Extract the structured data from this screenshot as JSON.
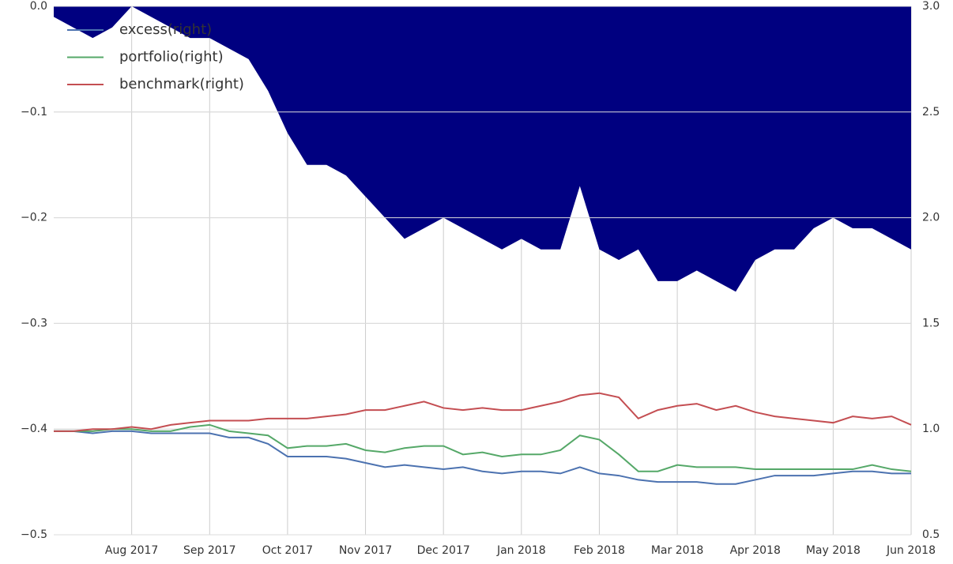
{
  "chart_data": {
    "type": "combo",
    "categories": [
      null,
      null,
      null,
      null,
      "Aug 2017",
      null,
      null,
      null,
      "Sep 2017",
      null,
      null,
      null,
      "Oct 2017",
      null,
      null,
      null,
      "Nov 2017",
      null,
      null,
      null,
      "Dec 2017",
      null,
      null,
      null,
      "Jan 2018",
      null,
      null,
      null,
      "Feb 2018",
      null,
      null,
      null,
      "Mar 2018",
      null,
      null,
      null,
      "Apr 2018",
      null,
      null,
      null,
      "May 2018",
      null,
      null,
      null,
      "Jun 2018"
    ],
    "series": [
      {
        "type": "area",
        "color": "#000080",
        "values": [
          -0.01,
          -0.02,
          -0.03,
          -0.02,
          0,
          -0.01,
          -0.02,
          -0.03,
          -0.03,
          -0.04,
          -0.05,
          -0.08,
          -0.12,
          -0.15,
          -0.15,
          -0.16,
          -0.18,
          -0.2,
          -0.22,
          -0.21,
          -0.2,
          -0.21,
          -0.22,
          -0.23,
          -0.22,
          -0.23,
          -0.23,
          -0.17,
          -0.23,
          -0.24,
          -0.23,
          -0.26,
          -0.26,
          -0.25,
          -0.26,
          -0.27,
          -0.24,
          -0.23,
          -0.23,
          -0.21,
          -0.2,
          -0.21,
          -0.21,
          -0.22,
          -0.23
        ]
      },
      {
        "type": "line",
        "name": "excess(right)",
        "color": "#4c72b0",
        "axis": "y2",
        "values": [
          0.99,
          0.99,
          0.98,
          0.99,
          0.99,
          0.98,
          0.98,
          0.98,
          0.98,
          0.96,
          0.96,
          0.93,
          0.87,
          0.87,
          0.87,
          0.86,
          0.84,
          0.82,
          0.83,
          0.82,
          0.81,
          0.82,
          0.8,
          0.79,
          0.8,
          0.8,
          0.79,
          0.82,
          0.79,
          0.78,
          0.76,
          0.75,
          0.75,
          0.75,
          0.74,
          0.74,
          0.76,
          0.78,
          0.78,
          0.78,
          0.79,
          0.8,
          0.8,
          0.79,
          0.79
        ]
      },
      {
        "type": "line",
        "name": "portfolio(right)",
        "color": "#55a868",
        "axis": "y2",
        "values": [
          0.99,
          0.99,
          0.99,
          1.0,
          1.0,
          0.99,
          0.99,
          1.01,
          1.02,
          0.99,
          0.98,
          0.97,
          0.91,
          0.92,
          0.92,
          0.93,
          0.9,
          0.89,
          0.91,
          0.92,
          0.92,
          0.88,
          0.89,
          0.87,
          0.88,
          0.88,
          0.9,
          0.97,
          0.95,
          0.88,
          0.8,
          0.8,
          0.83,
          0.82,
          0.82,
          0.82,
          0.81,
          0.81,
          0.81,
          0.81,
          0.81,
          0.81,
          0.83,
          0.81,
          0.8
        ]
      },
      {
        "type": "line",
        "name": "benchmark(right)",
        "color": "#c44e52",
        "axis": "y2",
        "values": [
          0.99,
          0.99,
          1.0,
          1.0,
          1.01,
          1.0,
          1.02,
          1.03,
          1.04,
          1.04,
          1.04,
          1.05,
          1.05,
          1.05,
          1.06,
          1.07,
          1.09,
          1.09,
          1.11,
          1.13,
          1.1,
          1.09,
          1.1,
          1.09,
          1.09,
          1.11,
          1.13,
          1.16,
          1.17,
          1.15,
          1.05,
          1.09,
          1.11,
          1.12,
          1.09,
          1.11,
          1.08,
          1.06,
          1.05,
          1.04,
          1.03,
          1.06,
          1.05,
          1.06,
          1.02
        ]
      }
    ],
    "ylim": [
      -0.5,
      0
    ],
    "yticks": [
      {
        "value": -0.5,
        "label": "−0.5"
      },
      {
        "value": -0.4,
        "label": "−0.4"
      },
      {
        "value": -0.3,
        "label": "−0.3"
      },
      {
        "value": -0.2,
        "label": "−0.2"
      },
      {
        "value": -0.1,
        "label": "−0.1"
      },
      {
        "value": 0,
        "label": "0.0"
      }
    ],
    "y2lim": [
      0.5,
      3.0
    ],
    "y2ticks": [
      0.5,
      {
        "value": 1,
        "label": "1.0"
      },
      1.5,
      {
        "value": 2,
        "label": "2.0"
      },
      2.5,
      {
        "value": 3,
        "label": "3.0"
      }
    ],
    "grid": true,
    "legend": "upper-left"
  }
}
